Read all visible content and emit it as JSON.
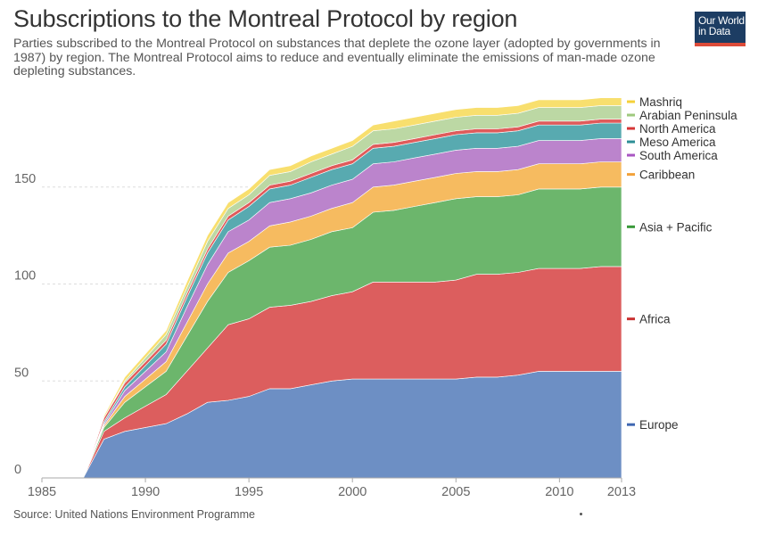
{
  "header": {
    "title": "Subscriptions to the Montreal Protocol by region",
    "subtitle": "Parties subscribed to the Montreal Protocol on substances that deplete the ozone layer (adopted by governments in 1987) by region. The Montreal Protocol aims to reduce and eventually eliminate the emissions of man-made ozone depleting substances.",
    "logo_line1": "Our World",
    "logo_line2": "in Data"
  },
  "footer": {
    "source": "Source: United Nations Environment Programme"
  },
  "colors": {
    "Europe": "#6d8fc4",
    "Africa": "#dc5e5e",
    "Asia + Pacific": "#6cb66c",
    "Caribbean": "#f6bb60",
    "South America": "#bb84cc",
    "Meso America": "#58aab0",
    "North America": "#e05b5b",
    "Arabian Peninsula": "#bcd8a4",
    "Mashriq": "#f8df6e",
    "Europe_legend": "#3f67b1",
    "Africa_legend": "#c93232",
    "Asia + Pacific_legend": "#3a9a3a",
    "Caribbean_legend": "#f2a23a",
    "South America_legend": "#a956c2",
    "Meso America_legend": "#2d8f96",
    "North America_legend": "#d63636",
    "Arabian Peninsula_legend": "#9fc97e",
    "Mashriq_legend": "#f5d139"
  },
  "chart_data": {
    "type": "area",
    "stacked": true,
    "xlim": [
      1985,
      2013
    ],
    "ylim": [
      0,
      200
    ],
    "x_ticks": [
      "1985",
      "1990",
      "1995",
      "2000",
      "2005",
      "2010",
      "2013"
    ],
    "x_tick_values": [
      1985,
      1990,
      1995,
      2000,
      2005,
      2010,
      2013
    ],
    "y_ticks": [
      "0",
      "50",
      "100",
      "150"
    ],
    "y_tick_values": [
      0,
      50,
      100,
      150
    ],
    "legend_position": "right",
    "x": [
      1985,
      1986,
      1987,
      1988,
      1989,
      1990,
      1991,
      1992,
      1993,
      1994,
      1995,
      1996,
      1997,
      1998,
      1999,
      2000,
      2001,
      2002,
      2003,
      2004,
      2005,
      2006,
      2007,
      2008,
      2009,
      2010,
      2011,
      2012,
      2013
    ],
    "series": [
      {
        "name": "Europe",
        "values": [
          0,
          0,
          0,
          20,
          24,
          26,
          28,
          33,
          39,
          40,
          42,
          46,
          46,
          48,
          50,
          51,
          51,
          51,
          51,
          51,
          51,
          52,
          52,
          53,
          55,
          55,
          55,
          55,
          55
        ]
      },
      {
        "name": "Africa",
        "values": [
          0,
          0,
          0,
          4,
          7,
          11,
          15,
          22,
          28,
          39,
          40,
          42,
          43,
          43,
          44,
          45,
          50,
          50,
          50,
          50,
          51,
          53,
          53,
          53,
          53,
          53,
          53,
          54,
          54
        ]
      },
      {
        "name": "Asia + Pacific",
        "values": [
          0,
          0,
          0,
          2,
          8,
          10,
          12,
          18,
          24,
          27,
          30,
          31,
          31,
          32,
          33,
          33,
          36,
          37,
          39,
          41,
          42,
          40,
          40,
          40,
          41,
          41,
          41,
          41,
          41
        ]
      },
      {
        "name": "Caribbean",
        "values": [
          0,
          0,
          0,
          1,
          3,
          4,
          5,
          7,
          9,
          10,
          10,
          11,
          12,
          12,
          12,
          13,
          13,
          13,
          13,
          13,
          13,
          13,
          13,
          13,
          13,
          13,
          13,
          13,
          13
        ]
      },
      {
        "name": "South America",
        "values": [
          0,
          0,
          0,
          1,
          3,
          4,
          5,
          8,
          10,
          11,
          11,
          12,
          12,
          12,
          12,
          12,
          12,
          12,
          12,
          12,
          12,
          12,
          12,
          12,
          12,
          12,
          12,
          12,
          12
        ]
      },
      {
        "name": "Meso America",
        "values": [
          0,
          0,
          0,
          1,
          2,
          3,
          4,
          5,
          6,
          6,
          7,
          7,
          7,
          8,
          8,
          8,
          8,
          8,
          8,
          8,
          8,
          8,
          8,
          8,
          8,
          8,
          8,
          8,
          8
        ]
      },
      {
        "name": "North America",
        "values": [
          0,
          0,
          0,
          2,
          2,
          2,
          2,
          2,
          2,
          2,
          2,
          2,
          2,
          2,
          2,
          2,
          2,
          2,
          2,
          2,
          2,
          2,
          2,
          2,
          2,
          2,
          2,
          2,
          2
        ]
      },
      {
        "name": "Arabian Peninsula",
        "values": [
          0,
          0,
          0,
          0,
          1,
          2,
          3,
          3,
          4,
          4,
          4,
          5,
          5,
          6,
          6,
          7,
          7,
          7,
          7,
          7,
          7,
          7,
          7,
          7,
          7,
          7,
          7,
          7,
          7
        ]
      },
      {
        "name": "Mashriq",
        "values": [
          0,
          0,
          0,
          1,
          2,
          2,
          2,
          3,
          3,
          3,
          3,
          3,
          3,
          3,
          3,
          3,
          3,
          4,
          4,
          4,
          4,
          4,
          4,
          4,
          4,
          4,
          4,
          4,
          4
        ]
      }
    ]
  }
}
